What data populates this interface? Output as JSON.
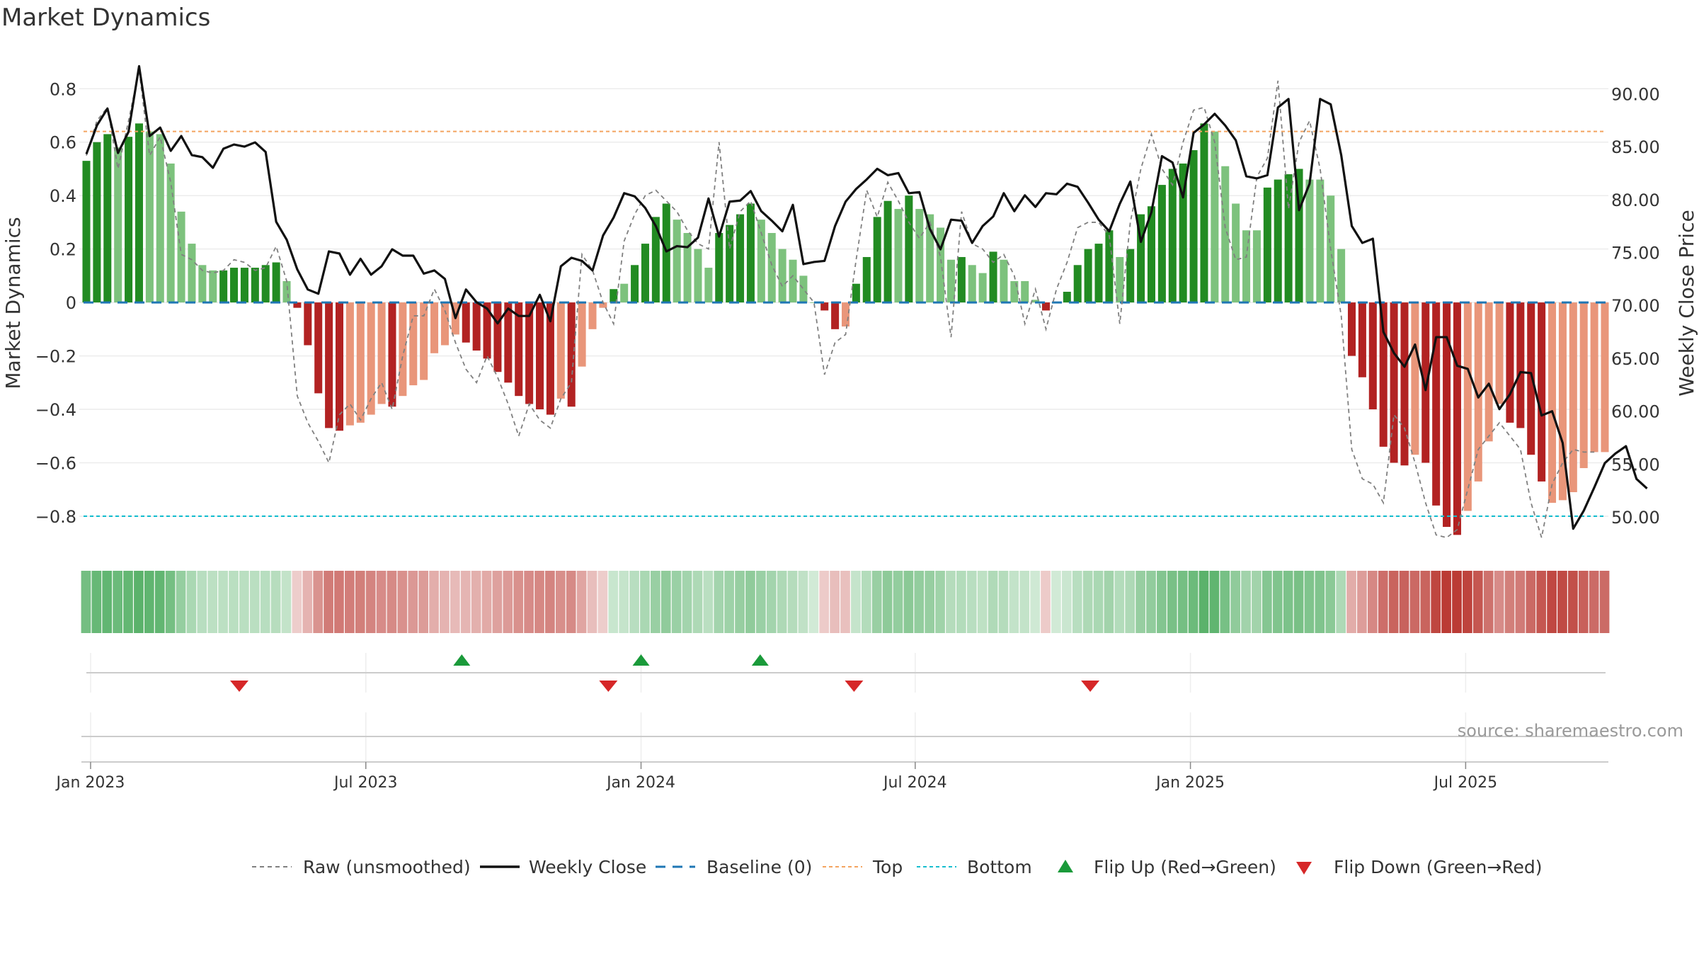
{
  "title": "Market Dynamics",
  "source": "source: sharemaestro.com",
  "colors": {
    "strong_green": "#228b22",
    "light_green": "#7dc27d",
    "strong_red": "#b22222",
    "light_red": "#e9967a",
    "raw_line": "#808080",
    "close_line": "#111111",
    "baseline": "#1f77b4",
    "top_line": "#f4a460",
    "bottom_line": "#17becf",
    "flip_up": "#1a9a3a",
    "flip_down": "#d62728"
  },
  "chart_data": {
    "type": "bar",
    "y_left_label": "Market Dynamics",
    "y_right_label": "Weekly Close Price",
    "y_left_ticks": [
      "0.8",
      "0.6",
      "0.4",
      "0.2",
      "0",
      "−0.2",
      "−0.4",
      "−0.6",
      "−0.8"
    ],
    "y_left_tick_values": [
      0.8,
      0.6,
      0.4,
      0.2,
      0,
      -0.2,
      -0.4,
      -0.6,
      -0.8
    ],
    "y_right_ticks": [
      "90.00",
      "85.00",
      "80.00",
      "75.00",
      "70.00",
      "65.00",
      "60.00",
      "55.00",
      "50.00"
    ],
    "y_right_tick_values": [
      90,
      85,
      80,
      75,
      70,
      65,
      60,
      55,
      50
    ],
    "y_left_range": [
      -0.93,
      0.92
    ],
    "y_right_range": [
      46.8,
      93.5
    ],
    "x_ticks": [
      "Jan 2023",
      "Jul 2023",
      "Jan 2024",
      "Jul 2024",
      "Jan 2025",
      "Jul 2025"
    ],
    "x_tick_weeks": [
      0.4,
      26.5,
      52.6,
      78.6,
      104.7,
      130.8
    ],
    "top_level": 0.64,
    "bottom_level": -0.8,
    "baseline_level": 0,
    "legend": {
      "raw": "Raw (unsmoothed)",
      "close": "Weekly Close",
      "baseline": "Baseline (0)",
      "top": "Top",
      "bottom": "Bottom",
      "flip_up": "Flip Up (Red→Green)",
      "flip_down": "Flip Down (Green→Red)"
    },
    "dynamics": [
      0.53,
      0.6,
      0.63,
      0.58,
      0.62,
      0.67,
      0.64,
      0.63,
      0.52,
      0.34,
      0.22,
      0.14,
      0.12,
      0.12,
      0.13,
      0.13,
      0.13,
      0.14,
      0.15,
      0.08,
      -0.02,
      -0.16,
      -0.34,
      -0.47,
      -0.48,
      -0.46,
      -0.45,
      -0.42,
      -0.38,
      -0.39,
      -0.35,
      -0.31,
      -0.29,
      -0.19,
      -0.16,
      -0.12,
      -0.15,
      -0.18,
      -0.21,
      -0.26,
      -0.3,
      -0.35,
      -0.38,
      -0.4,
      -0.42,
      -0.36,
      -0.39,
      -0.24,
      -0.1,
      -0.02,
      0.05,
      0.07,
      0.14,
      0.22,
      0.32,
      0.37,
      0.31,
      0.26,
      0.2,
      0.13,
      0.26,
      0.29,
      0.33,
      0.37,
      0.31,
      0.26,
      0.2,
      0.16,
      0.1,
      0.0,
      -0.03,
      -0.1,
      -0.09,
      0.07,
      0.17,
      0.32,
      0.38,
      0.35,
      0.4,
      0.35,
      0.33,
      0.28,
      0.16,
      0.17,
      0.14,
      0.11,
      0.19,
      0.16,
      0.08,
      0.08,
      0.01,
      -0.03,
      0.0,
      0.04,
      0.14,
      0.2,
      0.22,
      0.27,
      0.17,
      0.2,
      0.33,
      0.36,
      0.44,
      0.5,
      0.52,
      0.57,
      0.67,
      0.64,
      0.51,
      0.37,
      0.27,
      0.27,
      0.43,
      0.46,
      0.48,
      0.5,
      0.46,
      0.46,
      0.4,
      0.2,
      -0.2,
      -0.28,
      -0.4,
      -0.54,
      -0.6,
      -0.61,
      -0.57,
      -0.6,
      -0.76,
      -0.84,
      -0.87,
      -0.78,
      -0.67,
      -0.52,
      -0.38,
      -0.45,
      -0.47,
      -0.57,
      -0.67,
      -0.75,
      -0.74,
      -0.71,
      -0.62,
      -0.56,
      -0.56
    ],
    "dynamics_strong": [
      1,
      1,
      1,
      0,
      1,
      1,
      0,
      0,
      0,
      0,
      0,
      0,
      0,
      1,
      1,
      1,
      1,
      1,
      1,
      0,
      1,
      1,
      1,
      1,
      1,
      0,
      0,
      0,
      0,
      1,
      0,
      0,
      0,
      0,
      0,
      0,
      1,
      1,
      1,
      1,
      1,
      1,
      1,
      1,
      1,
      0,
      1,
      0,
      0,
      0,
      1,
      0,
      1,
      1,
      1,
      1,
      0,
      0,
      0,
      0,
      1,
      1,
      1,
      1,
      0,
      0,
      0,
      0,
      0,
      0,
      1,
      1,
      0,
      1,
      1,
      1,
      1,
      0,
      1,
      0,
      0,
      0,
      0,
      1,
      0,
      0,
      1,
      0,
      0,
      0,
      0,
      1,
      0,
      1,
      1,
      1,
      1,
      1,
      0,
      1,
      1,
      1,
      1,
      1,
      1,
      1,
      1,
      0,
      0,
      0,
      0,
      0,
      1,
      1,
      1,
      1,
      0,
      0,
      0,
      0,
      1,
      1,
      1,
      1,
      1,
      1,
      0,
      1,
      1,
      1,
      1,
      0,
      0,
      0,
      0,
      1,
      1,
      1,
      1,
      0,
      0,
      0,
      0,
      0,
      0
    ],
    "raw": [
      0.55,
      0.68,
      0.73,
      0.5,
      0.68,
      0.87,
      0.55,
      0.62,
      0.45,
      0.18,
      0.16,
      0.12,
      0.11,
      0.12,
      0.16,
      0.15,
      0.12,
      0.13,
      0.21,
      0.08,
      -0.35,
      -0.45,
      -0.52,
      -0.6,
      -0.42,
      -0.38,
      -0.44,
      -0.36,
      -0.3,
      -0.4,
      -0.2,
      -0.05,
      -0.05,
      0.05,
      -0.03,
      -0.15,
      -0.25,
      -0.3,
      -0.2,
      -0.28,
      -0.38,
      -0.5,
      -0.38,
      -0.44,
      -0.47,
      -0.36,
      -0.3,
      0.18,
      0.12,
      0.0,
      -0.08,
      0.23,
      0.33,
      0.4,
      0.42,
      0.38,
      0.34,
      0.27,
      0.22,
      0.2,
      0.6,
      0.2,
      0.34,
      0.38,
      0.26,
      0.14,
      0.06,
      0.1,
      0.05,
      0.0,
      -0.27,
      -0.15,
      -0.12,
      0.16,
      0.42,
      0.32,
      0.45,
      0.38,
      0.3,
      0.24,
      0.3,
      0.17,
      -0.13,
      0.34,
      0.22,
      0.2,
      0.15,
      0.18,
      0.1,
      -0.08,
      0.05,
      -0.1,
      0.05,
      0.15,
      0.28,
      0.3,
      0.3,
      0.25,
      -0.08,
      0.3,
      0.5,
      0.63,
      0.5,
      0.44,
      0.6,
      0.72,
      0.73,
      0.6,
      0.28,
      0.16,
      0.17,
      0.47,
      0.54,
      0.83,
      0.35,
      0.6,
      0.68,
      0.5,
      0.2,
      -0.05,
      -0.55,
      -0.66,
      -0.68,
      -0.75,
      -0.42,
      -0.47,
      -0.6,
      -0.75,
      -0.87,
      -0.88,
      -0.85,
      -0.7,
      -0.55,
      -0.5,
      -0.45,
      -0.5,
      -0.55,
      -0.75,
      -0.88,
      -0.68,
      -0.6,
      -0.55,
      -0.56,
      -0.56
    ],
    "close": [
      84.3,
      87.0,
      88.6,
      84.4,
      86.4,
      92.6,
      86.0,
      86.8,
      84.6,
      86.0,
      84.2,
      84.0,
      83.0,
      84.8,
      85.2,
      85.0,
      85.4,
      84.5,
      77.9,
      76.2,
      73.4,
      71.5,
      71.1,
      75.1,
      74.9,
      72.9,
      74.4,
      72.9,
      73.7,
      75.3,
      74.7,
      74.7,
      73.0,
      73.3,
      72.5,
      68.8,
      71.5,
      70.3,
      69.7,
      68.3,
      69.7,
      69.0,
      69.0,
      71.0,
      68.5,
      73.7,
      74.5,
      74.2,
      73.3,
      76.6,
      78.3,
      80.6,
      80.3,
      79.2,
      77.5,
      75.1,
      75.6,
      75.5,
      76.4,
      80.1,
      76.5,
      79.8,
      79.9,
      80.8,
      78.9,
      78.0,
      77.0,
      79.5,
      73.9,
      74.1,
      74.2,
      77.5,
      79.8,
      81.0,
      81.9,
      82.9,
      82.3,
      82.5,
      80.6,
      80.7,
      77.2,
      75.3,
      78.1,
      78.0,
      75.9,
      77.5,
      78.4,
      80.6,
      78.9,
      80.4,
      79.3,
      80.6,
      80.5,
      81.5,
      81.2,
      79.7,
      78.1,
      77.0,
      79.6,
      81.7,
      76.0,
      78.8,
      84.1,
      83.5,
      80.2,
      86.3,
      87.1,
      88.1,
      87.0,
      85.6,
      82.2,
      82.0,
      82.3,
      88.7,
      89.5,
      79.0,
      81.5,
      89.5,
      89.0,
      84.2,
      77.5,
      75.9,
      76.3,
      67.5,
      65.5,
      64.2,
      66.3,
      62.0,
      67.0,
      67.0,
      64.3,
      64.0,
      61.3,
      62.6,
      60.2,
      61.6,
      63.7,
      63.6,
      59.6,
      60.0,
      57.0,
      48.9,
      50.6,
      52.8,
      55.1,
      56.0,
      56.7,
      53.6,
      52.7
    ]
  },
  "color_strip_note": "",
  "flips": {
    "up_weeks": [
      35.6,
      52.6,
      63.9
    ],
    "down_weeks": [
      14.5,
      49.5,
      72.8,
      95.2
    ]
  }
}
